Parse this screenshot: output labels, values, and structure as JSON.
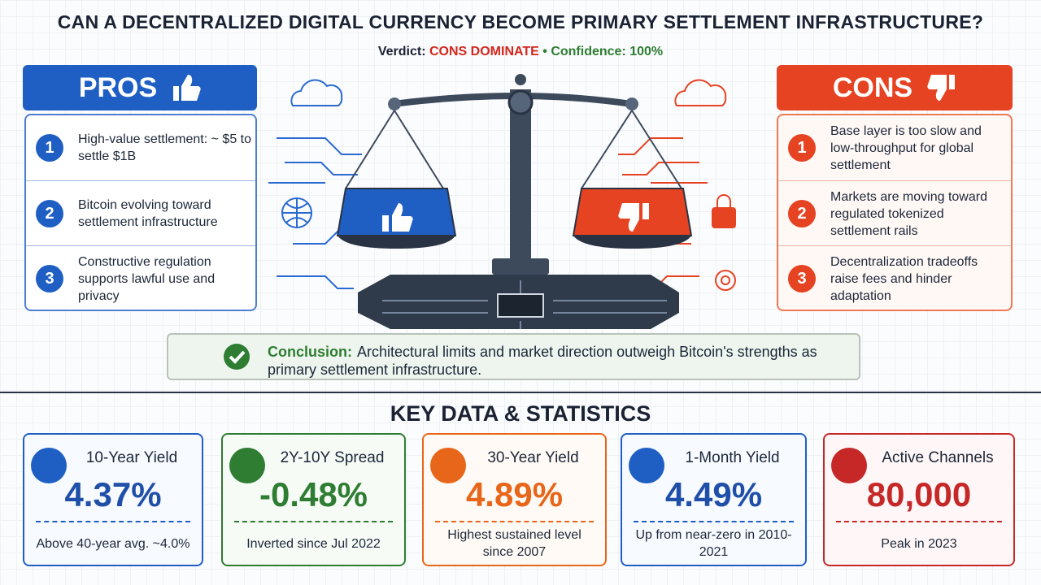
{
  "header": {
    "title": "CAN A DECENTRALIZED DIGITAL CURRENCY BECOME PRIMARY SETTLEMENT INFRASTRUCTURE?",
    "verdict_label": "Verdict:",
    "verdict": "CONS DOMINATE",
    "separator": "•",
    "confidence": "Confidence: 100%"
  },
  "pros": {
    "heading": "PROS",
    "items": [
      {
        "number": 1,
        "text": "High-value settlement: ~ $5 to settle $1B"
      },
      {
        "number": 2,
        "text": "Bitcoin evolving toward settlement infrastructure"
      },
      {
        "number": 3,
        "text": "Constructive regulation supports lawful use and privacy"
      }
    ]
  },
  "cons": {
    "heading": "CONS",
    "items": [
      {
        "number": 1,
        "text": "Base layer is too slow and low-throughput for global settlement"
      },
      {
        "number": 2,
        "text": "Markets are moving toward regulated tokenized settlement rails"
      },
      {
        "number": 3,
        "text": "Decentralization tradeoffs raise fees and hinder adaptation"
      }
    ]
  },
  "conclusion": {
    "label": "Conclusion:",
    "text": "Architectural limits and market direction outweigh Bitcoin's strengths as primary settlement infrastructure."
  },
  "statistics": {
    "heading": "KEY DATA & STATISTICS",
    "cards": [
      {
        "title": "10-Year Yield",
        "value": "4.37%",
        "note": "Above 40-year avg. ~4.0%"
      },
      {
        "title": "2Y-10Y Spread",
        "value": "-0.48%",
        "note": "Inverted since Jul 2022"
      },
      {
        "title": "30-Year Yield",
        "value": "4.89%",
        "note": "Highest sustained level since 2007"
      },
      {
        "title": "1-Month Yield",
        "value": "4.49%",
        "note": "Up from near-zero in 2010-2021"
      },
      {
        "title": "Active Channels",
        "value": "80,000",
        "note": "Peak in 2023"
      }
    ]
  }
}
